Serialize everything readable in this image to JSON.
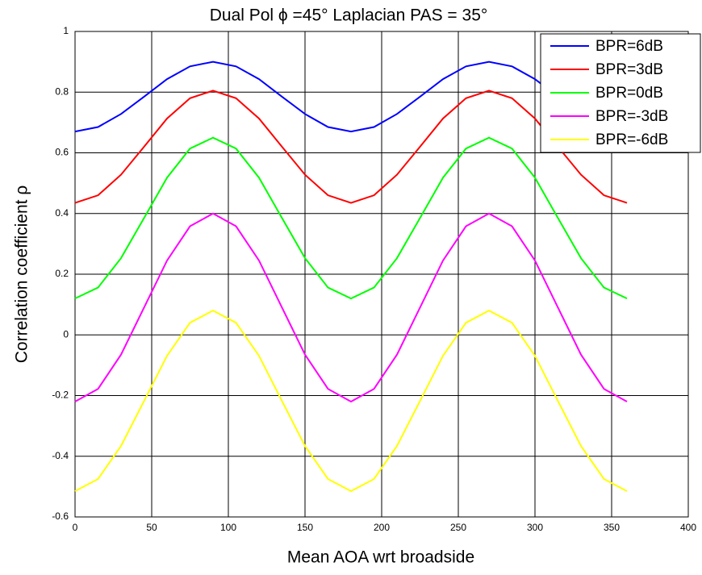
{
  "chart_data": {
    "type": "line",
    "title": "Dual Pol  ϕ =45°   Laplacian PAS = 35°",
    "xlabel": "Mean AOA wrt broadside",
    "ylabel": "Correlation coefficient  ρ",
    "x": [
      0,
      15,
      30,
      45,
      60,
      75,
      90,
      105,
      120,
      135,
      150,
      165,
      180,
      195,
      210,
      225,
      240,
      255,
      270,
      285,
      300,
      315,
      330,
      345,
      360
    ],
    "series": [
      {
        "name": "BPR=6dB",
        "color": "#0000ff",
        "values": [
          0.67,
          0.685,
          0.728,
          0.785,
          0.843,
          0.885,
          0.9,
          0.885,
          0.843,
          0.785,
          0.728,
          0.685,
          0.67,
          0.685,
          0.728,
          0.785,
          0.843,
          0.885,
          0.9,
          0.885,
          0.843,
          0.785,
          0.728,
          0.685,
          0.67
        ]
      },
      {
        "name": "BPR=3dB",
        "color": "#ff0000",
        "values": [
          0.435,
          0.46,
          0.528,
          0.62,
          0.713,
          0.78,
          0.805,
          0.78,
          0.713,
          0.62,
          0.528,
          0.46,
          0.435,
          0.46,
          0.528,
          0.62,
          0.713,
          0.78,
          0.805,
          0.78,
          0.713,
          0.62,
          0.528,
          0.46,
          0.435
        ]
      },
      {
        "name": "BPR=0dB",
        "color": "#00ff00",
        "values": [
          0.12,
          0.156,
          0.253,
          0.385,
          0.518,
          0.614,
          0.65,
          0.614,
          0.518,
          0.385,
          0.253,
          0.156,
          0.12,
          0.156,
          0.253,
          0.385,
          0.518,
          0.614,
          0.65,
          0.614,
          0.518,
          0.385,
          0.253,
          0.156,
          0.12
        ]
      },
      {
        "name": "BPR=-3dB",
        "color": "#ff00ff",
        "values": [
          -0.22,
          -0.178,
          -0.065,
          0.09,
          0.245,
          0.358,
          0.4,
          0.358,
          0.245,
          0.09,
          -0.065,
          -0.178,
          -0.22,
          -0.178,
          -0.065,
          0.09,
          0.245,
          0.358,
          0.4,
          0.358,
          0.245,
          0.09,
          -0.065,
          -0.178,
          -0.22
        ]
      },
      {
        "name": "BPR=-6dB",
        "color": "#ffff00",
        "values": [
          -0.515,
          -0.475,
          -0.366,
          -0.218,
          -0.069,
          0.04,
          0.08,
          0.04,
          -0.069,
          -0.218,
          -0.366,
          -0.475,
          -0.515,
          -0.475,
          -0.366,
          -0.218,
          -0.069,
          0.04,
          0.08,
          0.04,
          -0.069,
          -0.218,
          -0.366,
          -0.475,
          -0.515
        ]
      }
    ],
    "xlim": [
      0,
      400
    ],
    "xticks": [
      0,
      50,
      100,
      150,
      200,
      250,
      300,
      350,
      400
    ],
    "ylim": [
      -0.6,
      1
    ],
    "yticks": [
      -0.6,
      -0.4,
      -0.2,
      0,
      0.2,
      0.4,
      0.6,
      0.8,
      1
    ],
    "grid": true,
    "legend": "upper-right"
  }
}
